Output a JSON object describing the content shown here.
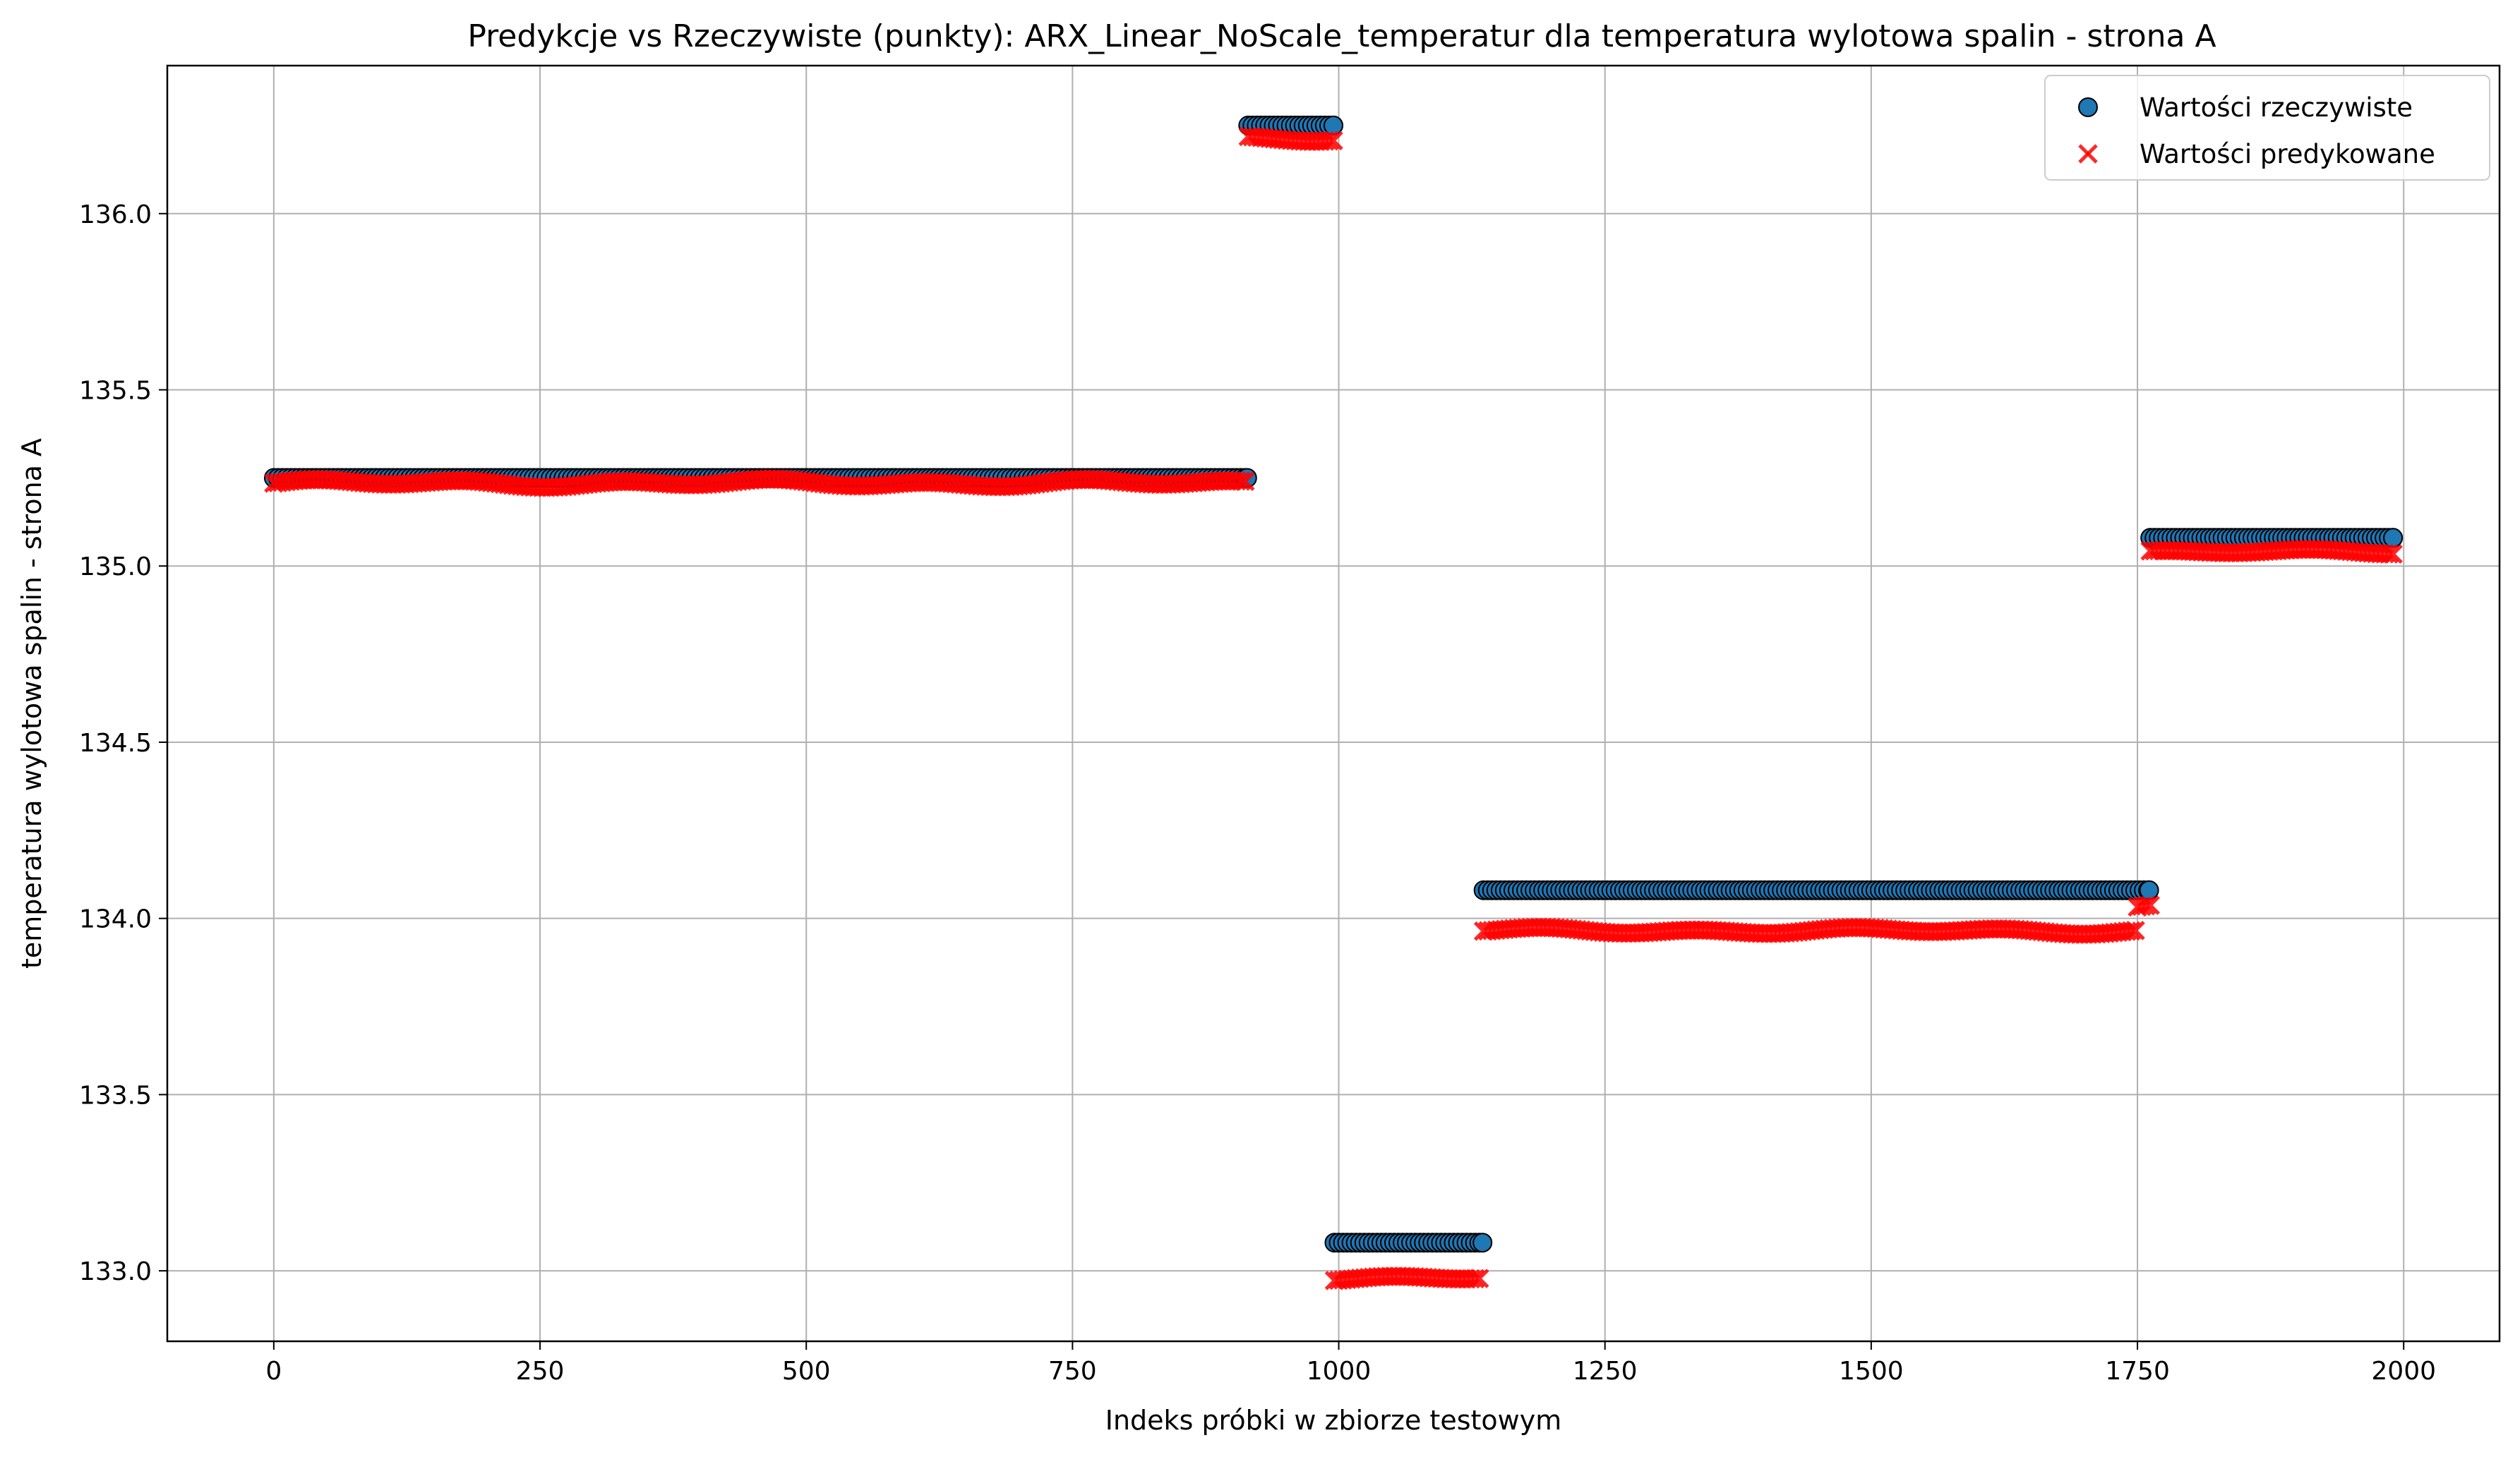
{
  "chart_data": {
    "type": "scatter",
    "title": "Predykcje vs Rzeczywiste (punkty): ARX_Linear_NoScale_temperatur dla temperatura wylotowa spalin - strona A",
    "xlabel": "Indeks próbki w zbiorze testowym",
    "ylabel": "temperatura wylotowa spalin - strona A",
    "xlim": [
      -100,
      2090
    ],
    "ylim": [
      132.8,
      136.42
    ],
    "xticks": [
      0,
      250,
      500,
      750,
      1000,
      1250,
      1500,
      1750,
      2000
    ],
    "xtick_labels": [
      "0",
      "250",
      "500",
      "750",
      "1000",
      "1250",
      "1500",
      "1750",
      "2000"
    ],
    "yticks": [
      133.0,
      133.5,
      134.0,
      134.5,
      135.0,
      135.5,
      136.0
    ],
    "ytick_labels": [
      "133.0",
      "133.5",
      "134.0",
      "134.5",
      "135.0",
      "135.5",
      "136.0"
    ],
    "grid": true,
    "legend_position": "top-right",
    "series": [
      {
        "name": "Wartości rzeczywiste",
        "marker": "circle",
        "color": "#1f77b4",
        "edge_color": "#000000",
        "segments": [
          {
            "x_start": 0,
            "x_end": 914,
            "y": 135.25
          },
          {
            "x_start": 915,
            "x_end": 995,
            "y": 136.25
          },
          {
            "x_start": 996,
            "x_end": 1135,
            "y": 133.08
          },
          {
            "x_start": 1136,
            "x_end": 1761,
            "y": 134.08
          },
          {
            "x_start": 1762,
            "x_end": 1990,
            "y": 135.08
          }
        ]
      },
      {
        "name": "Wartości predykowane",
        "marker": "x",
        "color": "#ff0000",
        "segments": [
          {
            "x_start": 0,
            "x_end": 914,
            "y": 135.235,
            "wobble": 0.012
          },
          {
            "x_start": 915,
            "x_end": 995,
            "y": 136.215,
            "wobble": 0.01
          },
          {
            "x_start": 996,
            "x_end": 1135,
            "y": 132.98,
            "wobble": 0.01
          },
          {
            "x_start": 1136,
            "x_end": 1750,
            "y": 133.965,
            "wobble": 0.01
          },
          {
            "x_start": 1750,
            "x_end": 1762,
            "y": 134.03,
            "wobble": 0.02
          },
          {
            "x_start": 1762,
            "x_end": 1990,
            "y": 135.04,
            "wobble": 0.008
          }
        ]
      }
    ]
  }
}
